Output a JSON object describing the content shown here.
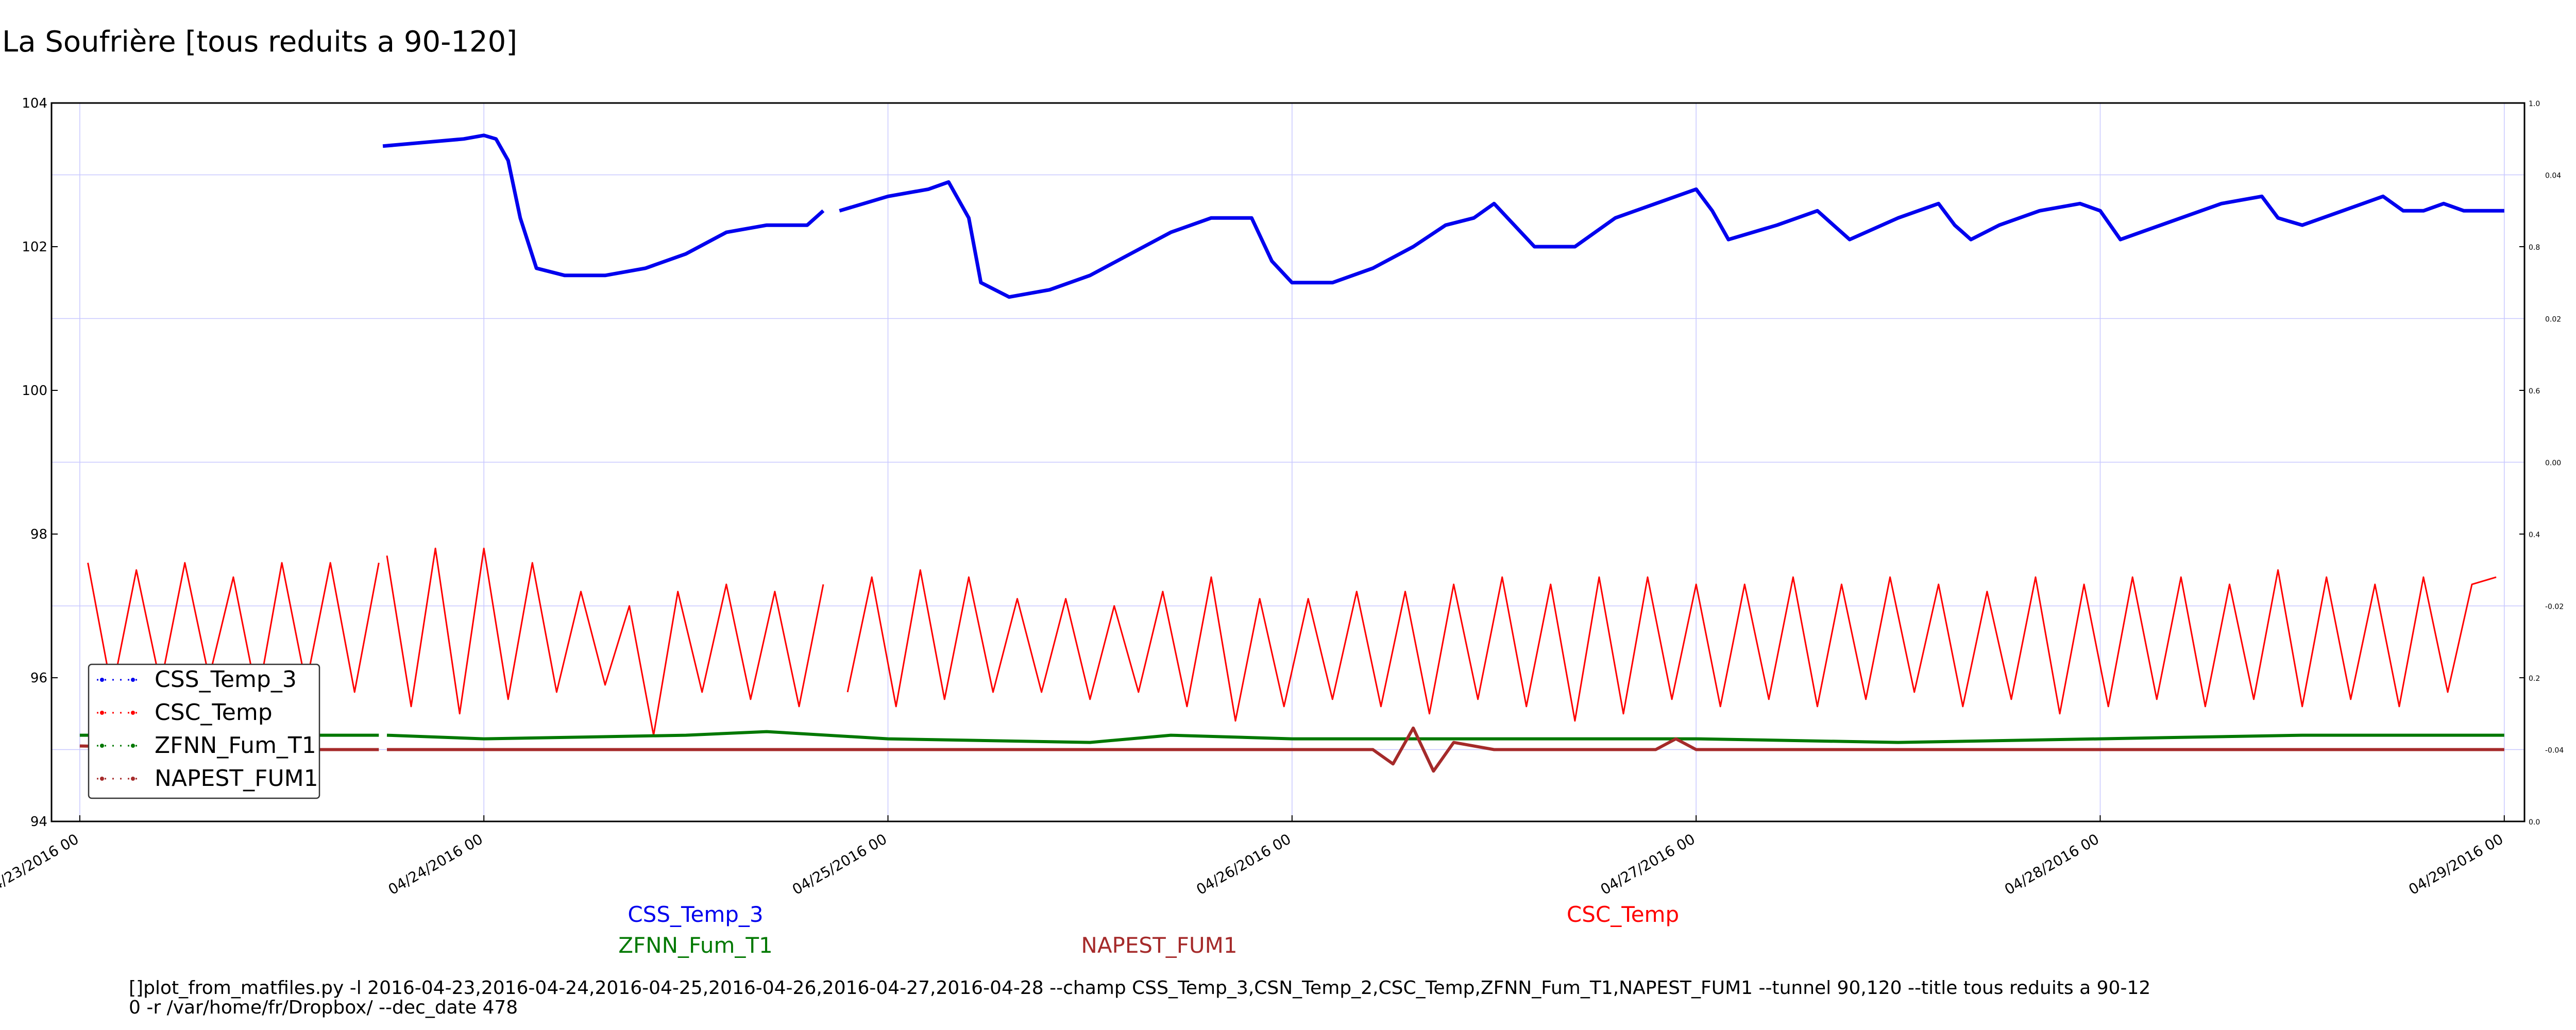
{
  "chart_data": {
    "type": "line",
    "title": "La Soufrière [tous reduits a 90-120]",
    "xlabel": "",
    "ylabel": "",
    "xlim": [
      -0.07,
      6.05
    ],
    "ylim": [
      94,
      104
    ],
    "y_ticks": [
      "94",
      "96",
      "98",
      "100",
      "102",
      "104"
    ],
    "y2_ticks": [
      "0.0",
      "0.2",
      "0.4",
      "0.6",
      "0.8",
      "1.0"
    ],
    "y3_ticks": [
      "-0.04",
      "-0.02",
      "0.00",
      "0.02",
      "0.04"
    ],
    "x_ticks": [
      "04/23/2016 00",
      "04/24/2016 00",
      "04/25/2016 00",
      "04/26/2016 00",
      "04/27/2016 00",
      "04/28/2016 00",
      "04/29/2016 00"
    ],
    "grid": true,
    "legend_position": "lower-left",
    "series": [
      {
        "name": "CSS_Temp_3",
        "color": "#0000ee",
        "gaps": [
          [
            0,
            0.75
          ],
          [
            1.84,
            1.88
          ]
        ],
        "x": [
          0.75,
          0.85,
          0.95,
          1.0,
          1.03,
          1.06,
          1.09,
          1.13,
          1.2,
          1.3,
          1.4,
          1.5,
          1.6,
          1.7,
          1.8,
          1.84,
          1.88,
          2.0,
          2.1,
          2.15,
          2.2,
          2.23,
          2.3,
          2.4,
          2.5,
          2.6,
          2.7,
          2.8,
          2.85,
          2.9,
          2.95,
          3.0,
          3.1,
          3.2,
          3.3,
          3.38,
          3.45,
          3.5,
          3.6,
          3.7,
          3.8,
          3.9,
          4.0,
          4.04,
          4.08,
          4.2,
          4.3,
          4.34,
          4.38,
          4.5,
          4.6,
          4.64,
          4.68,
          4.75,
          4.85,
          4.95,
          5.0,
          5.05,
          5.1,
          5.2,
          5.3,
          5.4,
          5.44,
          5.5,
          5.6,
          5.7,
          5.75,
          5.8,
          5.85,
          5.9,
          6.0
        ],
        "y": [
          103.4,
          103.45,
          103.5,
          103.55,
          103.5,
          103.2,
          102.4,
          101.7,
          101.6,
          101.6,
          101.7,
          101.9,
          102.2,
          102.3,
          102.3,
          102.5,
          102.5,
          102.7,
          102.8,
          102.9,
          102.4,
          101.5,
          101.3,
          101.4,
          101.6,
          101.9,
          102.2,
          102.4,
          102.4,
          102.4,
          101.8,
          101.5,
          101.5,
          101.7,
          102.0,
          102.3,
          102.4,
          102.6,
          102.0,
          102.0,
          102.4,
          102.6,
          102.8,
          102.5,
          102.1,
          102.3,
          102.5,
          102.3,
          102.1,
          102.4,
          102.6,
          102.3,
          102.1,
          102.3,
          102.5,
          102.6,
          102.5,
          102.1,
          102.2,
          102.4,
          102.6,
          102.7,
          102.4,
          102.3,
          102.5,
          102.7,
          102.5,
          102.5,
          102.6,
          102.5,
          102.5
        ]
      },
      {
        "name": "CSC_Temp",
        "color": "#ff0000",
        "gaps": [
          [
            0.74,
            0.76
          ],
          [
            1.83,
            1.89
          ]
        ],
        "x": [
          0.02,
          0.08,
          0.14,
          0.2,
          0.26,
          0.32,
          0.38,
          0.44,
          0.5,
          0.56,
          0.62,
          0.68,
          0.74,
          0.76,
          0.82,
          0.88,
          0.94,
          1.0,
          1.06,
          1.12,
          1.18,
          1.24,
          1.3,
          1.36,
          1.42,
          1.48,
          1.54,
          1.6,
          1.66,
          1.72,
          1.78,
          1.84,
          1.9,
          1.96,
          2.02,
          2.08,
          2.14,
          2.2,
          2.26,
          2.32,
          2.38,
          2.44,
          2.5,
          2.56,
          2.62,
          2.68,
          2.74,
          2.8,
          2.86,
          2.92,
          2.98,
          3.04,
          3.1,
          3.16,
          3.22,
          3.28,
          3.34,
          3.4,
          3.46,
          3.52,
          3.58,
          3.64,
          3.7,
          3.76,
          3.82,
          3.88,
          3.94,
          4.0,
          4.06,
          4.12,
          4.18,
          4.24,
          4.3,
          4.36,
          4.42,
          4.48,
          4.54,
          4.6,
          4.66,
          4.72,
          4.78,
          4.84,
          4.9,
          4.96,
          5.02,
          5.08,
          5.14,
          5.2,
          5.26,
          5.32,
          5.38,
          5.44,
          5.5,
          5.56,
          5.62,
          5.68,
          5.74,
          5.8,
          5.86,
          5.92,
          5.98
        ],
        "y": [
          97.6,
          95.8,
          97.5,
          95.9,
          97.6,
          96.0,
          97.4,
          95.7,
          97.6,
          95.9,
          97.6,
          95.8,
          97.6,
          97.7,
          95.6,
          97.8,
          95.5,
          97.8,
          95.7,
          97.6,
          95.8,
          97.2,
          95.9,
          97.0,
          95.2,
          97.2,
          95.8,
          97.3,
          95.7,
          97.2,
          95.6,
          97.3,
          95.8,
          97.4,
          95.6,
          97.5,
          95.7,
          97.4,
          95.8,
          97.1,
          95.8,
          97.1,
          95.7,
          97.0,
          95.8,
          97.2,
          95.6,
          97.4,
          95.4,
          97.1,
          95.6,
          97.1,
          95.7,
          97.2,
          95.6,
          97.2,
          95.5,
          97.3,
          95.7,
          97.4,
          95.6,
          97.3,
          95.4,
          97.4,
          95.5,
          97.4,
          95.7,
          97.3,
          95.6,
          97.3,
          95.7,
          97.4,
          95.6,
          97.3,
          95.7,
          97.4,
          95.8,
          97.3,
          95.6,
          97.2,
          95.7,
          97.4,
          95.5,
          97.3,
          95.6,
          97.4,
          95.7,
          97.4,
          95.6,
          97.3,
          95.7,
          97.5,
          95.6,
          97.4,
          95.7,
          97.3,
          95.6,
          97.4,
          95.8,
          97.3,
          97.4
        ]
      },
      {
        "name": "ZFNN_Fum_T1",
        "color": "#007800",
        "gaps": [
          [
            0.74,
            0.76
          ]
        ],
        "x": [
          0.0,
          0.5,
          0.74,
          0.76,
          1.0,
          1.5,
          1.7,
          2.0,
          2.5,
          2.7,
          3.0,
          3.5,
          4.0,
          4.5,
          5.0,
          5.5,
          6.0
        ],
        "y": [
          95.2,
          95.2,
          95.2,
          95.2,
          95.15,
          95.2,
          95.25,
          95.15,
          95.1,
          95.2,
          95.15,
          95.15,
          95.15,
          95.1,
          95.15,
          95.2,
          95.2
        ]
      },
      {
        "name": "NAPEST_FUM1",
        "color": "#a52a2a",
        "gaps": [
          [
            0.74,
            0.76
          ]
        ],
        "x": [
          0.0,
          0.5,
          0.74,
          0.76,
          1.0,
          1.5,
          2.0,
          2.5,
          3.0,
          3.2,
          3.25,
          3.3,
          3.35,
          3.4,
          3.5,
          3.9,
          3.95,
          4.0,
          4.5,
          5.0,
          5.5,
          6.0
        ],
        "y": [
          95.05,
          95.0,
          95.0,
          95.0,
          95.0,
          95.0,
          95.0,
          95.0,
          95.0,
          95.0,
          94.8,
          95.3,
          94.7,
          95.1,
          95.0,
          95.0,
          95.15,
          95.0,
          95.0,
          95.0,
          95.0,
          95.0
        ]
      }
    ]
  },
  "labels_below": [
    {
      "text": "CSS_Temp_3",
      "color": "#0000ee"
    },
    {
      "text": "ZFNN_Fum_T1",
      "color": "#007800"
    },
    {
      "text": "NAPEST_FUM1",
      "color": "#a52a2a"
    },
    {
      "text": "CSC_Temp",
      "color": "#ff0000"
    }
  ],
  "command_line": {
    "line1": "[]plot_from_matfiles.py -l 2016-04-23,2016-04-24,2016-04-25,2016-04-26,2016-04-27,2016-04-28 --champ CSS_Temp_3,CSN_Temp_2,CSC_Temp,ZFNN_Fum_T1,NAPEST_FUM1 --tunnel 90,120 --title tous reduits a 90-12",
    "line2": "0 -r /var/home/fr/Dropbox/ --dec_date 478"
  }
}
